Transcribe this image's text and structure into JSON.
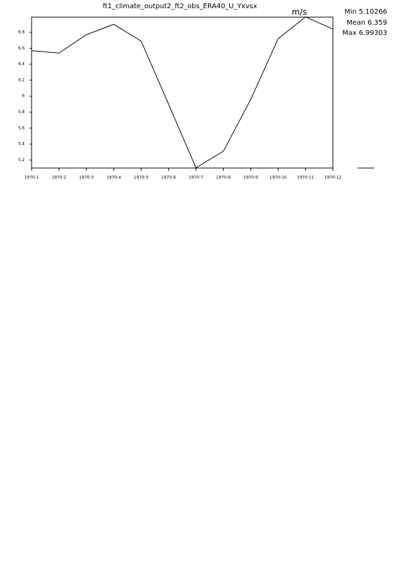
{
  "chart_data": {
    "type": "line",
    "title": "ft1_climate_output2_ft2_obs_ERA40_U_Yxvsx",
    "unit": "m/s",
    "annotations": [
      "Min 5.10266",
      "Mean 6.359",
      "Max 6.99303"
    ],
    "categories": [
      "1970-1",
      "1970-2",
      "1970-3",
      "1970-4",
      "1970-5",
      "1970-6",
      "1970-7",
      "1970-8",
      "1970-9",
      "1970-10",
      "1970-11",
      "1970-12"
    ],
    "series": [
      {
        "color": "#000000",
        "values": [
          6.57,
          6.54,
          6.77,
          6.9,
          6.69,
          5.9,
          5.10266,
          5.31,
          5.96,
          6.72,
          6.99303,
          6.84
        ]
      }
    ],
    "ylim": [
      5.1,
      6.99
    ],
    "yticks": [
      5.2,
      5.4,
      5.6,
      5.8,
      6.0,
      6.2,
      6.4,
      6.6,
      6.8
    ]
  }
}
